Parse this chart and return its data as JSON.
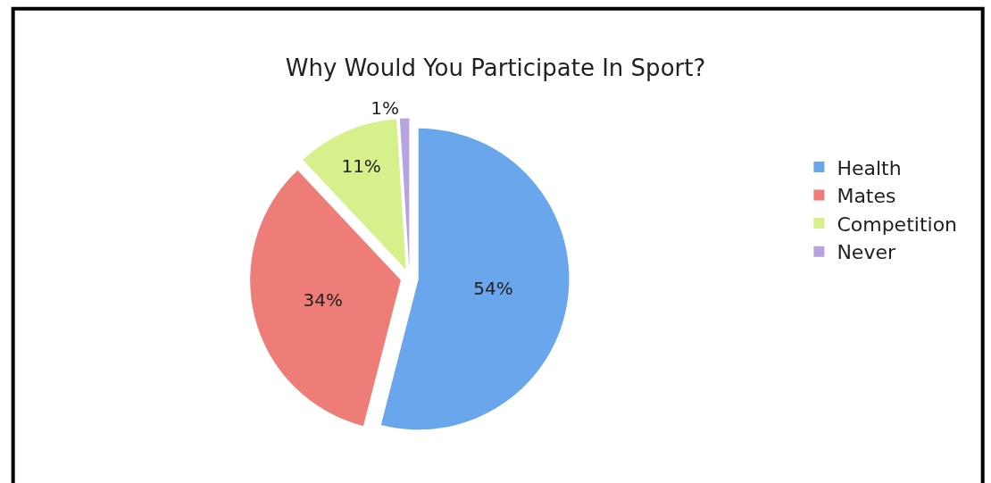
{
  "chart_data": {
    "type": "pie",
    "title": "Why Would You Participate In Sport?",
    "categories": [
      "Health",
      "Mates",
      "Competition",
      "Never"
    ],
    "values": [
      54,
      34,
      11,
      1
    ],
    "colors": [
      "#6aa6ec",
      "#ee7d78",
      "#d6f08c",
      "#b7a3dd"
    ],
    "value_labels": [
      "54%",
      "34%",
      "11%",
      "1%"
    ],
    "legend": "right"
  }
}
